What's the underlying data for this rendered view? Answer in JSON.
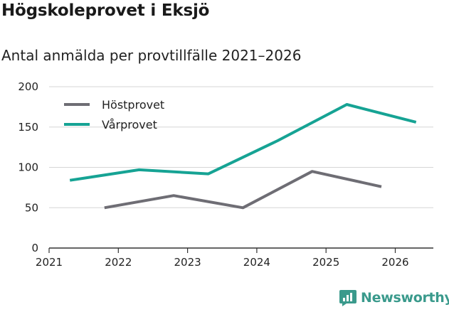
{
  "header": {
    "title": "Högskoleprovet i Eksjö",
    "subtitle": "Antal anmälda per provtillfälle 2021–2026"
  },
  "brand": {
    "name": "Newsworthy",
    "color": "#3a9a8c"
  },
  "chart_data": {
    "type": "line",
    "title": "Högskoleprovet i Eksjö",
    "subtitle": "Antal anmälda per provtillfälle 2021–2026",
    "xlabel": "",
    "ylabel": "",
    "xlim": [
      2021,
      2026.55
    ],
    "ylim": [
      0,
      200
    ],
    "x_ticks": [
      2021,
      2022,
      2023,
      2024,
      2025,
      2026
    ],
    "y_ticks": [
      0,
      50,
      100,
      150,
      200
    ],
    "grid": true,
    "legend_position": "top-left",
    "series": [
      {
        "name": "Höstprovet",
        "color": "#6e6d74",
        "x": [
          2021.8,
          2022.8,
          2023.8,
          2024.8,
          2025.8
        ],
        "values": [
          50,
          65,
          50,
          95,
          76
        ]
      },
      {
        "name": "Vårprovet",
        "color": "#16a394",
        "x": [
          2021.3,
          2022.3,
          2023.3,
          2024.3,
          2025.3,
          2026.3
        ],
        "values": [
          84,
          97,
          92,
          133,
          178,
          156
        ]
      }
    ]
  }
}
